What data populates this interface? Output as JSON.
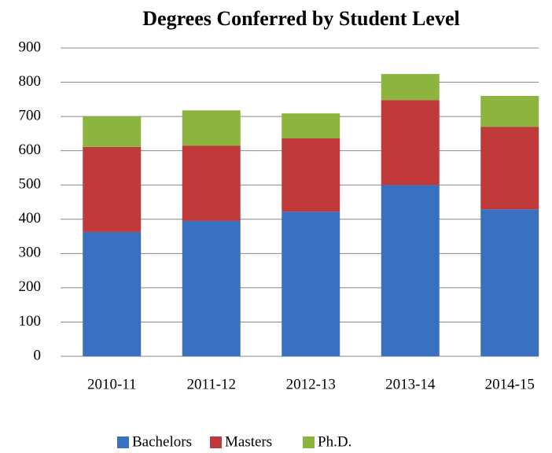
{
  "chart_data": {
    "type": "bar",
    "stacked": true,
    "title": "Degrees Conferred by Student Level",
    "categories": [
      "2010-11",
      "2011-12",
      "2012-13",
      "2013-14",
      "2014-15"
    ],
    "series": [
      {
        "name": "Bachelors",
        "color": "#3a70c0",
        "values": [
          363,
          395,
          422,
          500,
          429
        ]
      },
      {
        "name": "Masters",
        "color": "#c0393b",
        "values": [
          248,
          220,
          214,
          248,
          241
        ]
      },
      {
        "name": "Ph.D.",
        "color": "#8db43e",
        "values": [
          89,
          103,
          73,
          76,
          90
        ]
      }
    ],
    "ylim": [
      0,
      900
    ],
    "yticks": [
      0,
      100,
      200,
      300,
      400,
      500,
      600,
      700,
      800,
      900
    ],
    "grid": true,
    "legend": "bottom"
  }
}
